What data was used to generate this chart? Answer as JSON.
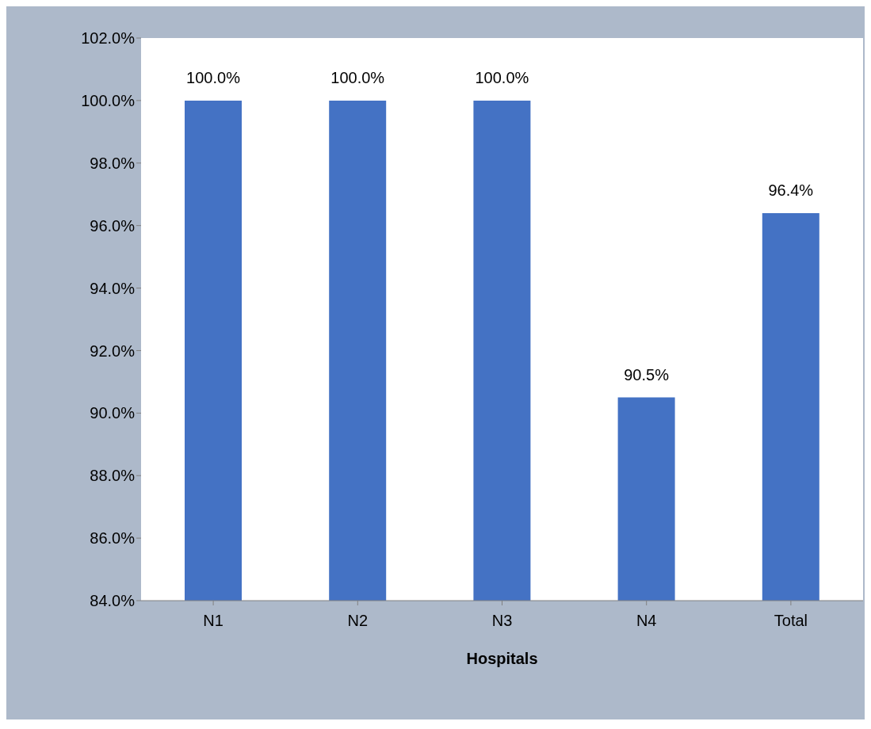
{
  "chart_data": {
    "type": "bar",
    "xlabel": "Hospitals",
    "categories": [
      "N1",
      "N2",
      "N3",
      "N4",
      "Total"
    ],
    "values": [
      100.0,
      100.0,
      100.0,
      90.5,
      96.4
    ],
    "value_labels": [
      "100.0%",
      "100.0%",
      "100.0%",
      "90.5%",
      "96.4%"
    ],
    "color": "#4472c4",
    "ylim": [
      84,
      102
    ],
    "yticks": [
      {
        "value": 84,
        "label": "84.0%"
      },
      {
        "value": 86,
        "label": "86.0%"
      },
      {
        "value": 88,
        "label": "88.0%"
      },
      {
        "value": 90,
        "label": "90.0%"
      },
      {
        "value": 92,
        "label": "92.0%"
      },
      {
        "value": 94,
        "label": "94.0%"
      },
      {
        "value": 96,
        "label": "96.0%"
      },
      {
        "value": 98,
        "label": "98.0%"
      },
      {
        "value": 100,
        "label": "100.0%"
      },
      {
        "value": 102,
        "label": "102.0%"
      }
    ],
    "grid": false,
    "legend": false
  }
}
